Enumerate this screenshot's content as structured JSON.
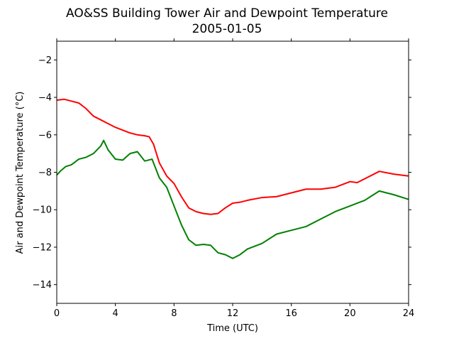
{
  "chart_data": {
    "type": "line",
    "title": "AO&SS Building Tower Air and Dewpoint Temperature",
    "subtitle": "2005-01-05",
    "xlabel": "Time (UTC)",
    "ylabel": "Air and Dewpoint Temperature (°C)",
    "xlim": [
      0,
      24
    ],
    "ylim": [
      -15,
      -1
    ],
    "xticks": [
      0,
      4,
      8,
      12,
      16,
      20,
      24
    ],
    "yticks": [
      -14,
      -12,
      -10,
      -8,
      -6,
      -4,
      -2
    ],
    "grid": false,
    "series": [
      {
        "color": "#ff0000",
        "x": [
          0,
          0.5,
          1,
          1.5,
          2,
          2.5,
          3,
          3.5,
          4,
          4.5,
          5,
          5.5,
          6,
          6.3,
          6.6,
          7,
          7.5,
          8,
          8.5,
          9,
          9.5,
          10,
          10.5,
          11,
          11.5,
          12,
          12.5,
          13,
          14,
          15,
          16,
          17,
          18,
          19,
          20,
          20.5,
          21,
          22,
          23,
          24
        ],
        "y": [
          -4.15,
          -4.1,
          -4.2,
          -4.3,
          -4.6,
          -5.0,
          -5.2,
          -5.4,
          -5.6,
          -5.75,
          -5.9,
          -6.0,
          -6.05,
          -6.1,
          -6.5,
          -7.5,
          -8.2,
          -8.6,
          -9.3,
          -9.9,
          -10.1,
          -10.2,
          -10.25,
          -10.2,
          -9.9,
          -9.65,
          -9.6,
          -9.5,
          -9.35,
          -9.3,
          -9.1,
          -8.9,
          -8.9,
          -8.8,
          -8.5,
          -8.55,
          -8.35,
          -7.95,
          -8.1,
          -8.2
        ]
      },
      {
        "color": "#008000",
        "x": [
          0,
          0.3,
          0.6,
          1,
          1.5,
          2,
          2.5,
          3,
          3.2,
          3.5,
          4,
          4.5,
          5,
          5.5,
          6,
          6.5,
          7,
          7.5,
          8,
          8.5,
          9,
          9.5,
          10,
          10.5,
          11,
          11.5,
          12,
          12.5,
          13,
          14,
          15,
          16,
          17,
          18,
          19,
          20,
          21,
          22,
          23,
          24
        ],
        "y": [
          -8.15,
          -7.9,
          -7.7,
          -7.6,
          -7.3,
          -7.2,
          -7.0,
          -6.6,
          -6.3,
          -6.8,
          -7.3,
          -7.35,
          -7.0,
          -6.9,
          -7.4,
          -7.3,
          -8.3,
          -8.8,
          -9.8,
          -10.8,
          -11.6,
          -11.9,
          -11.85,
          -11.9,
          -12.3,
          -12.4,
          -12.6,
          -12.4,
          -12.1,
          -11.8,
          -11.3,
          -11.1,
          -10.9,
          -10.5,
          -10.1,
          -9.8,
          -9.5,
          -9.0,
          -9.2,
          -9.45
        ]
      }
    ]
  }
}
